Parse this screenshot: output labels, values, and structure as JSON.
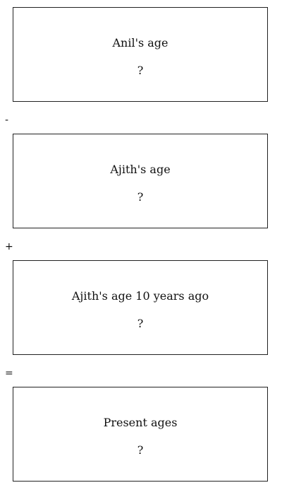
{
  "boxes": [
    {
      "label": "Anil's age",
      "value": "?"
    },
    {
      "label": "Ajith's age",
      "value": "?"
    },
    {
      "label": "Ajith's age 10 years ago",
      "value": "?"
    },
    {
      "label": "Present ages",
      "value": "?"
    }
  ],
  "operators": [
    "-",
    "+",
    "="
  ]
}
